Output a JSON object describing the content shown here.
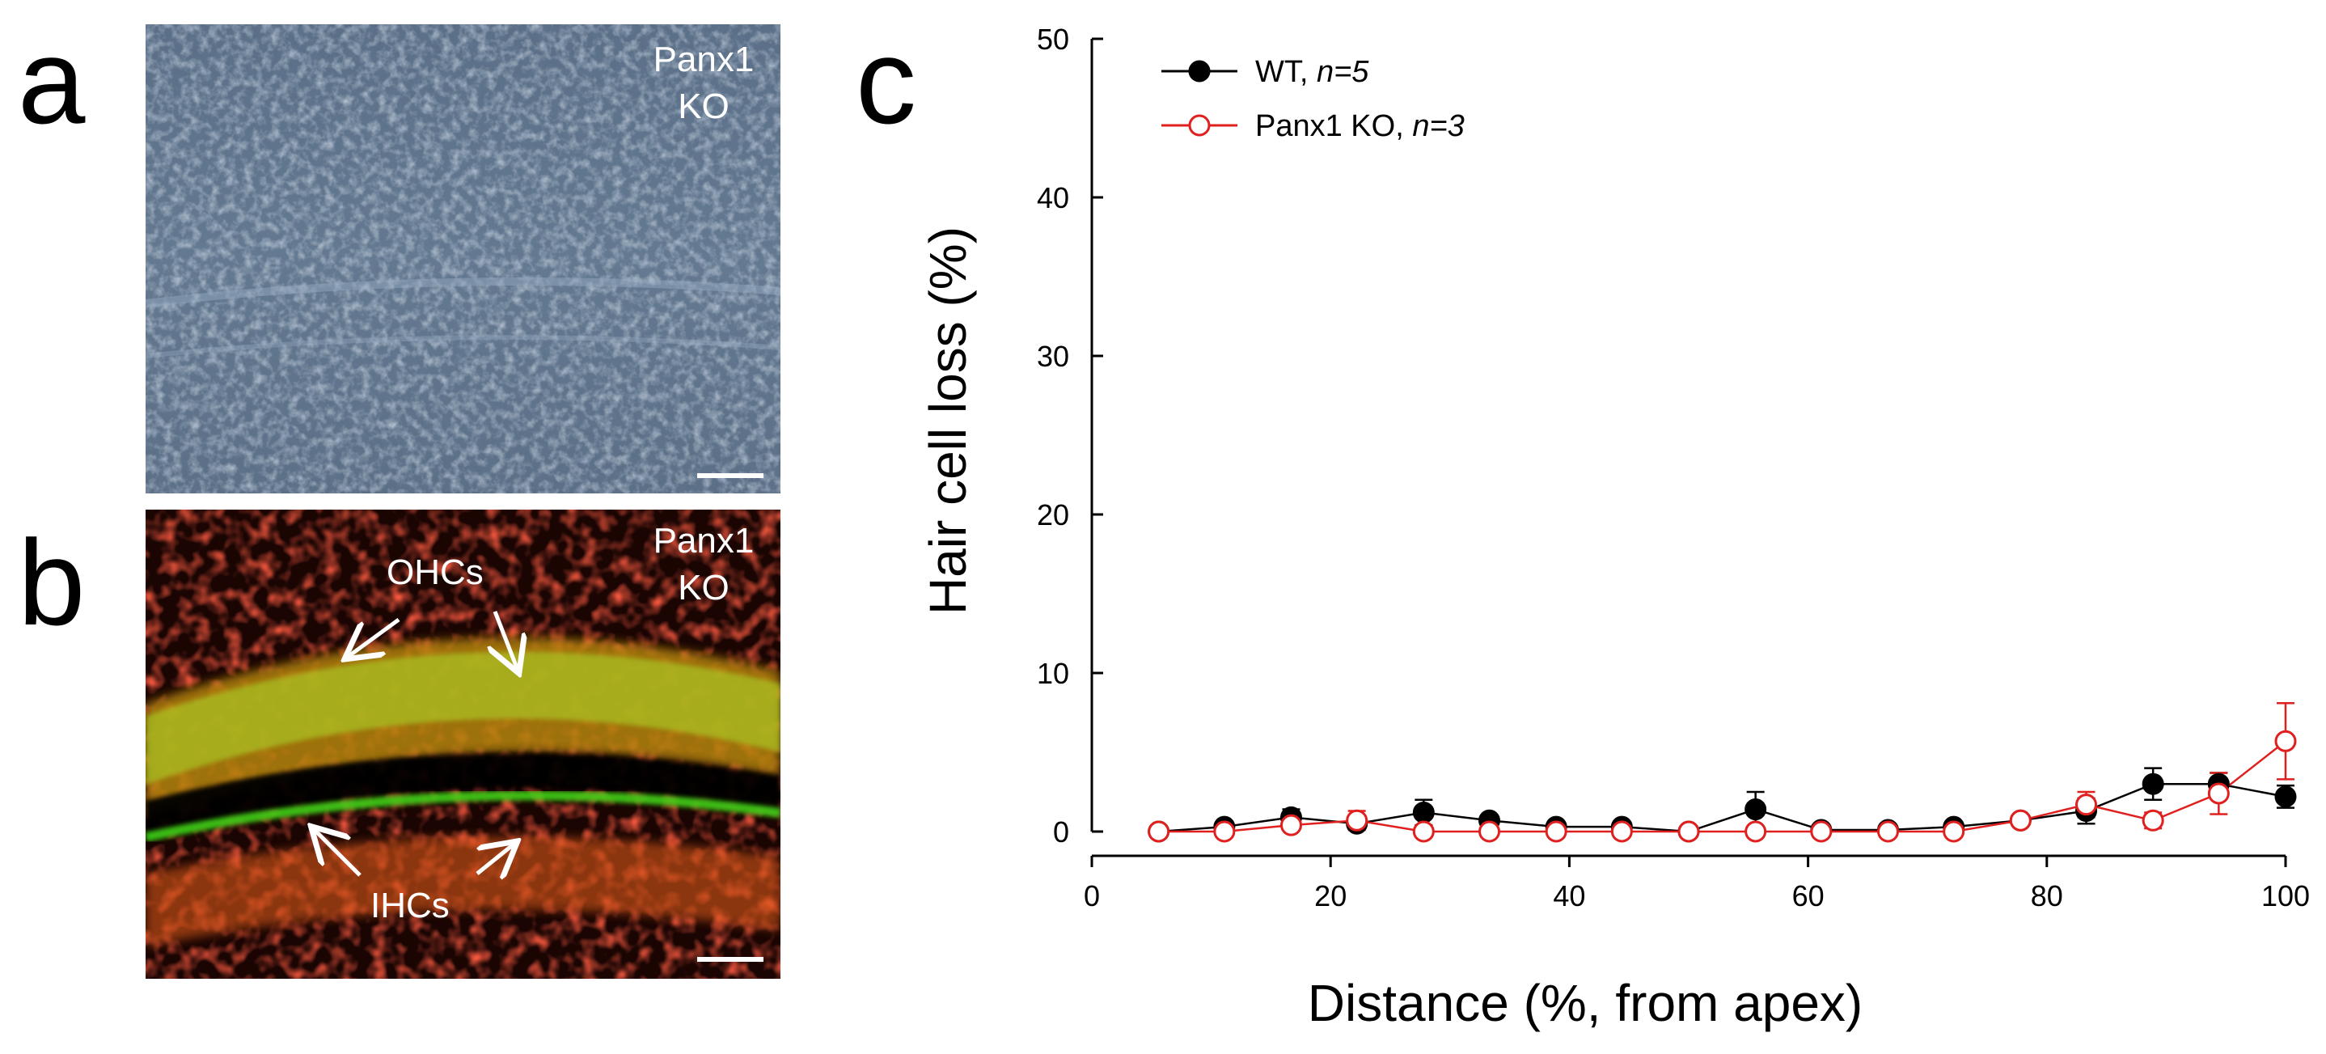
{
  "panels": {
    "a": {
      "letter": "a",
      "label_line1": "Panx1",
      "label_line2": "KO"
    },
    "b": {
      "letter": "b",
      "label_line1": "Panx1",
      "label_line2": "KO",
      "annotation_ohc": "OHCs",
      "annotation_ihc": "IHCs"
    },
    "c": {
      "letter": "c"
    }
  },
  "colors": {
    "wt": "#000000",
    "ko": "#e0201e",
    "brightfield": "#5f7389",
    "fluor_red": "#e8200f",
    "fluor_green": "#4fd21e"
  },
  "chart_data": {
    "type": "scatter",
    "title": "",
    "xlabel": "Distance (%, from apex)",
    "ylabel": "Hair cell loss (%)",
    "xlim": [
      0,
      100
    ],
    "ylim": [
      0,
      50
    ],
    "xticks": [
      0,
      20,
      40,
      60,
      80,
      100
    ],
    "yticks": [
      0,
      10,
      20,
      30,
      40,
      50
    ],
    "grid": false,
    "legend_position": "top-left",
    "series": [
      {
        "name": "WT, ",
        "name_n": "n=5",
        "color": "#000000",
        "marker": "filled-circle",
        "x": [
          5.6,
          11.1,
          16.7,
          22.2,
          27.8,
          33.3,
          38.9,
          44.4,
          50.0,
          55.6,
          61.1,
          66.7,
          72.2,
          77.8,
          83.3,
          88.9,
          94.4,
          100.0
        ],
        "y": [
          0,
          0.3,
          0.9,
          0.5,
          1.2,
          0.7,
          0.3,
          0.3,
          0,
          1.4,
          0.1,
          0.1,
          0.3,
          0.7,
          1.3,
          3.0,
          3.0,
          2.2
        ],
        "err": [
          0,
          0.2,
          0.5,
          0.2,
          0.8,
          0.3,
          0.2,
          0.2,
          0,
          1.1,
          0.1,
          0.1,
          0.2,
          0.3,
          0.8,
          1.0,
          0.7,
          0.7
        ]
      },
      {
        "name": "Panx1 KO, ",
        "name_n": "n=3",
        "color": "#e0201e",
        "marker": "open-circle",
        "x": [
          5.6,
          11.1,
          16.7,
          22.2,
          27.8,
          33.3,
          38.9,
          44.4,
          50.0,
          55.6,
          61.1,
          66.7,
          72.2,
          77.8,
          83.3,
          88.9,
          94.4,
          100.0
        ],
        "y": [
          0,
          0,
          0.4,
          0.7,
          0,
          0,
          0,
          0,
          0,
          0,
          0,
          0,
          0,
          0.7,
          1.7,
          0.7,
          2.4,
          5.7
        ],
        "err": [
          0,
          0,
          0.2,
          0.6,
          0,
          0,
          0,
          0,
          0,
          0,
          0,
          0,
          0,
          0.3,
          0.8,
          0.5,
          1.3,
          2.4
        ]
      }
    ]
  }
}
